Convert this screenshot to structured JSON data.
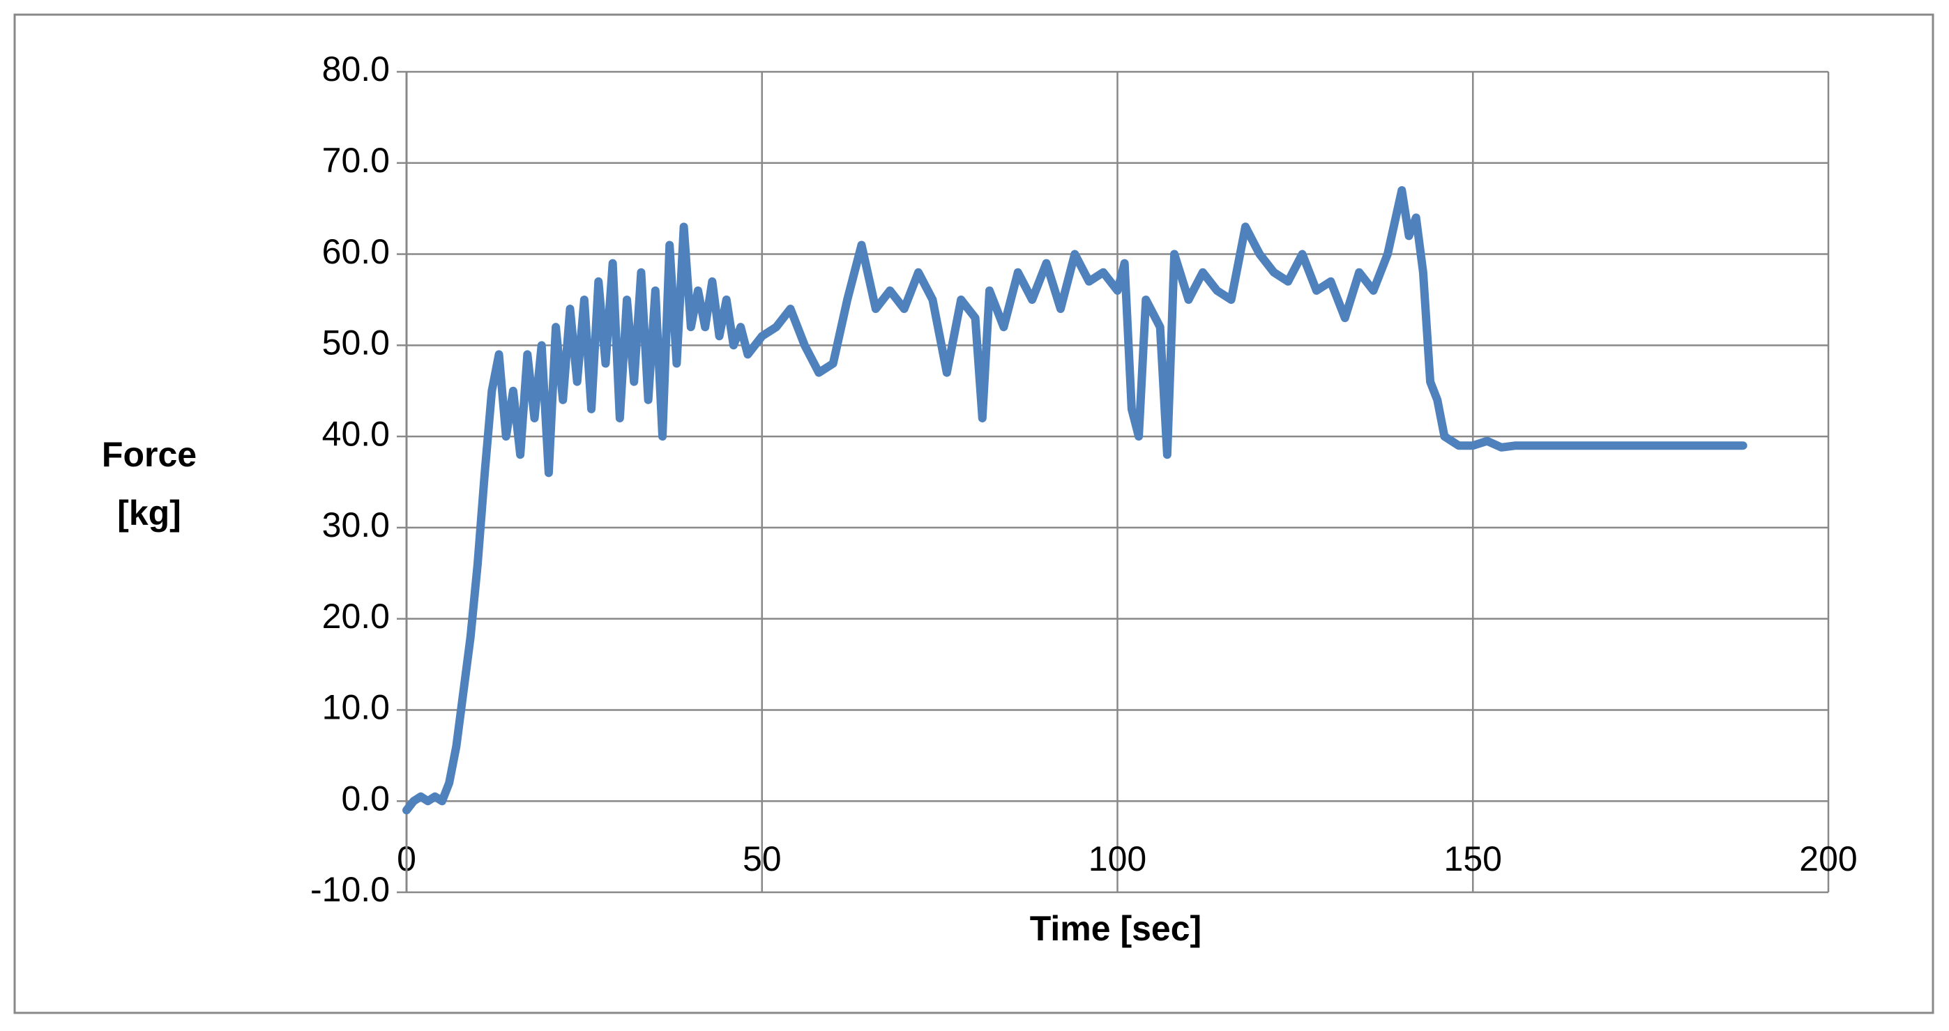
{
  "chart_data": {
    "type": "line",
    "xlabel": "Time [sec]",
    "ylabel": [
      "Force",
      "[kg]"
    ],
    "color": "#4f81bd",
    "grid": true,
    "xlim": [
      0,
      200
    ],
    "xticks": [
      0,
      50,
      100,
      150,
      200
    ],
    "ylim": [
      -10,
      80
    ],
    "yticks": [
      {
        "value": -10,
        "label": "-10.0"
      },
      {
        "value": 0,
        "label": "0.0"
      },
      {
        "value": 10,
        "label": "10.0"
      },
      {
        "value": 20,
        "label": "20.0"
      },
      {
        "value": 30,
        "label": "30.0"
      },
      {
        "value": 40,
        "label": "40.0"
      },
      {
        "value": 50,
        "label": "50.0"
      },
      {
        "value": 60,
        "label": "60.0"
      },
      {
        "value": 70,
        "label": "70.0"
      },
      {
        "value": 80,
        "label": "80.0"
      }
    ],
    "x": [
      0,
      1,
      2,
      3,
      4,
      5,
      6,
      7,
      8,
      9,
      10,
      11,
      12,
      13,
      14,
      15,
      16,
      17,
      18,
      19,
      20,
      21,
      22,
      23,
      24,
      25,
      26,
      27,
      28,
      29,
      30,
      31,
      32,
      33,
      34,
      35,
      36,
      37,
      38,
      39,
      40,
      41,
      42,
      43,
      44,
      45,
      46,
      47,
      48,
      50,
      52,
      54,
      56,
      58,
      60,
      62,
      64,
      66,
      68,
      70,
      72,
      74,
      76,
      78,
      80,
      81,
      82,
      84,
      86,
      88,
      90,
      92,
      94,
      96,
      98,
      100,
      101,
      102,
      103,
      104,
      106,
      107,
      108,
      110,
      112,
      114,
      116,
      118,
      120,
      122,
      124,
      126,
      128,
      130,
      132,
      134,
      136,
      138,
      140,
      141,
      142,
      143,
      144,
      145,
      146,
      148,
      150,
      152,
      154,
      156,
      160,
      165,
      170,
      175,
      180,
      185,
      188
    ],
    "values": [
      -1,
      0,
      0.5,
      0,
      0.5,
      0,
      2,
      6,
      12,
      18,
      26,
      36,
      45,
      49,
      40,
      45,
      38,
      49,
      42,
      50,
      36,
      52,
      44,
      54,
      46,
      55,
      43,
      57,
      48,
      59,
      42,
      55,
      46,
      58,
      44,
      56,
      40,
      61,
      48,
      63,
      52,
      56,
      52,
      57,
      51,
      55,
      50,
      52,
      49,
      51,
      52,
      54,
      50,
      47,
      48,
      55,
      61,
      54,
      56,
      54,
      58,
      55,
      47,
      55,
      53,
      42,
      56,
      52,
      58,
      55,
      59,
      54,
      60,
      57,
      58,
      56,
      59,
      43,
      40,
      55,
      52,
      38,
      60,
      55,
      58,
      56,
      55,
      63,
      60,
      58,
      57,
      60,
      56,
      57,
      53,
      58,
      56,
      60,
      67,
      62,
      64,
      58,
      46,
      44,
      40,
      39,
      39,
      39.5,
      38.8,
      39,
      39,
      39,
      39,
      39,
      39,
      39,
      39
    ]
  }
}
